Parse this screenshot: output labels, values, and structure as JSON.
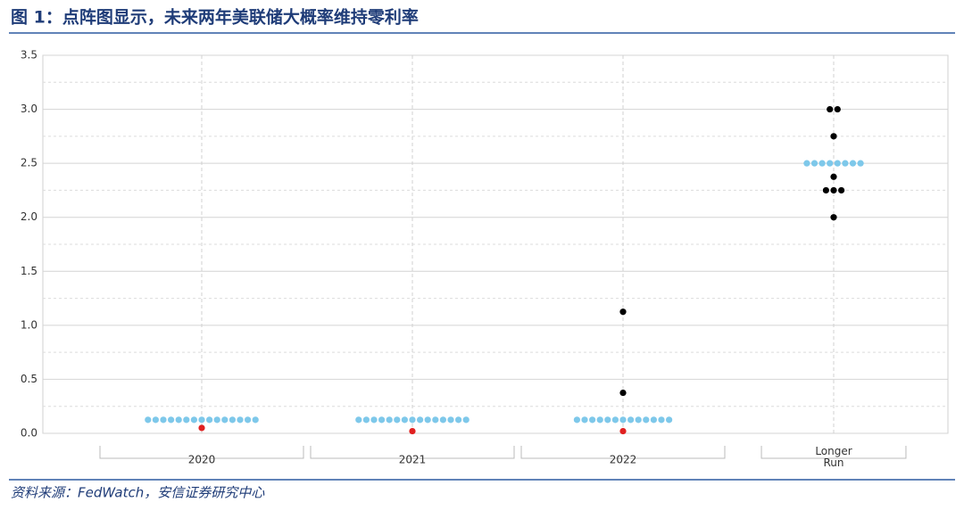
{
  "title": "图 1：点阵图显示，未来两年美联储大概率维持零利率",
  "source": "资料来源：FedWatch，安信证券研究中心",
  "chart_data": {
    "type": "dot",
    "categories": [
      "2020",
      "2021",
      "2022",
      "Longer Run"
    ],
    "ylim": [
      0,
      3.5
    ],
    "yticks": [
      {
        "value": 0,
        "label": "0.0"
      },
      0.5,
      {
        "value": 1,
        "label": "1.0"
      },
      1.5,
      {
        "value": 2,
        "label": "2.0"
      },
      2.5,
      {
        "value": 3,
        "label": "3.0"
      },
      3.5
    ],
    "grid": true,
    "series": [
      {
        "color": "#7ec8ea",
        "values": [
          [
            0.125,
            0.125,
            0.125,
            0.125,
            0.125,
            0.125,
            0.125,
            0.125,
            0.125,
            0.125,
            0.125,
            0.125,
            0.125,
            0.125,
            0.125
          ],
          [
            0.125,
            0.125,
            0.125,
            0.125,
            0.125,
            0.125,
            0.125,
            0.125,
            0.125,
            0.125,
            0.125,
            0.125,
            0.125,
            0.125,
            0.125
          ],
          [
            0.125,
            0.125,
            0.125,
            0.125,
            0.125,
            0.125,
            0.125,
            0.125,
            0.125,
            0.125,
            0.125,
            0.125,
            0.125
          ],
          [
            2.5,
            2.5,
            2.5,
            2.5,
            2.5,
            2.5,
            2.5,
            2.5
          ]
        ]
      },
      {
        "color": "#000000",
        "values": [
          [],
          [],
          [
            0.375,
            1.125
          ],
          [
            3.0,
            3.0,
            2.75,
            2.375,
            2.25,
            2.25,
            2.25,
            2.0
          ]
        ]
      },
      {
        "color": "#e02020",
        "values": [
          [
            0.05
          ],
          [
            0.02
          ],
          [
            0.02
          ],
          []
        ]
      }
    ]
  }
}
